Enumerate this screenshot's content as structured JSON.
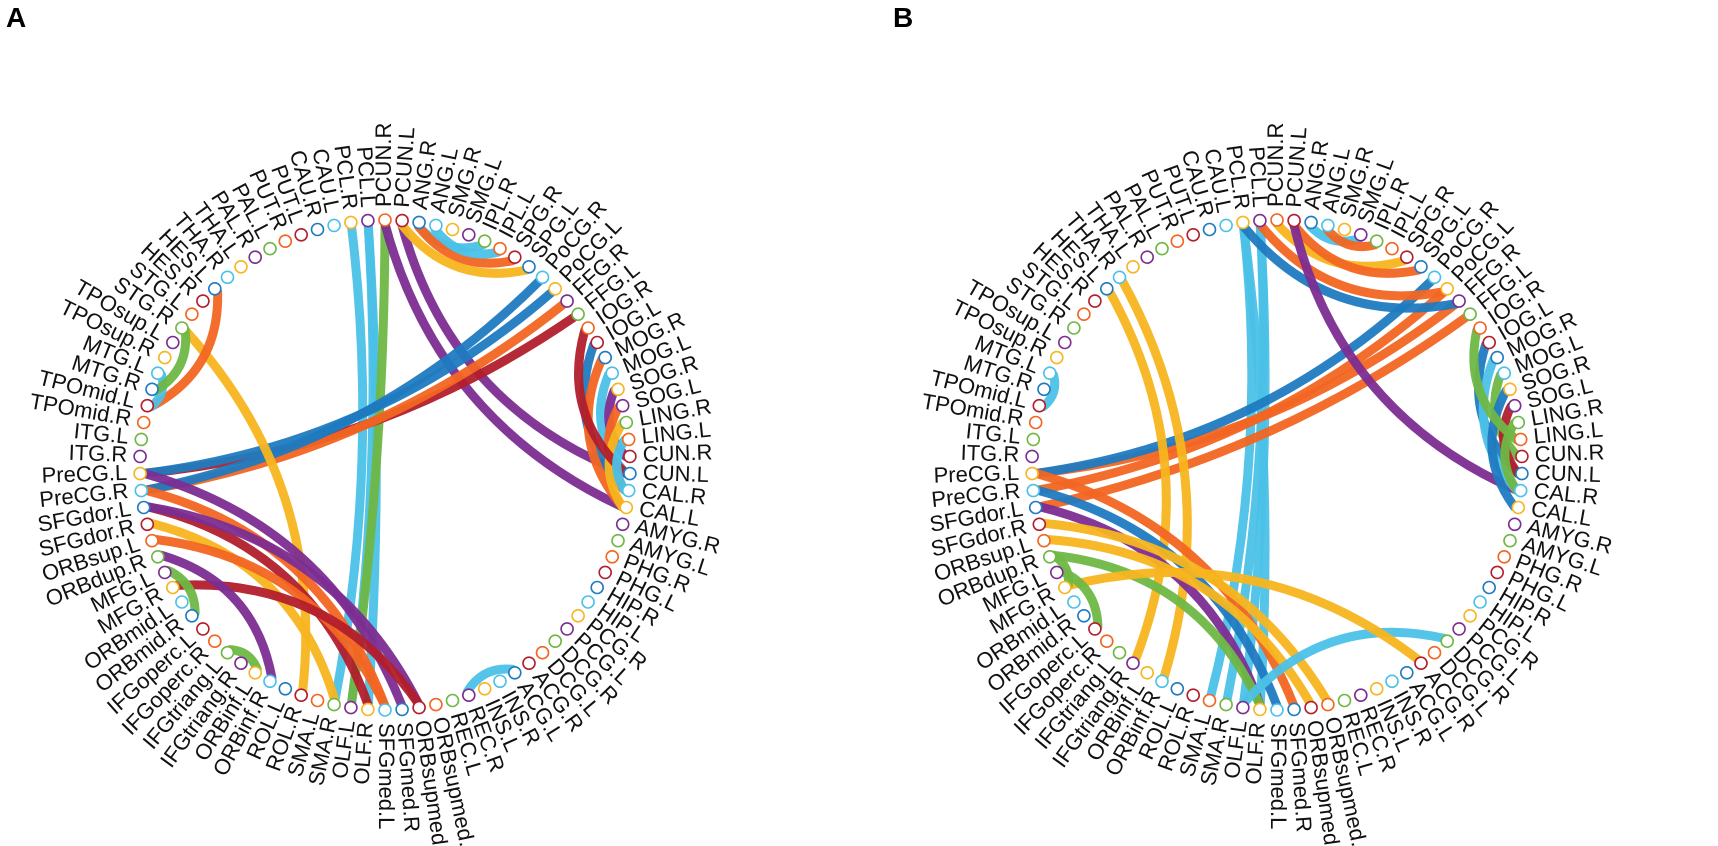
{
  "palette": {
    "orange": "#f26522",
    "dark_red": "#b21e2b",
    "blue": "#1f7ac0",
    "light_blue": "#4cc1e8",
    "yellow": "#f7b51f",
    "purple": "#7c2d92",
    "green": "#6fb744"
  },
  "panels": [
    {
      "letter": "A",
      "labels": [
        "PCUN.R",
        "PCUN.L",
        "ANG.R",
        "ANG.L",
        "SMG.R",
        "SMG.L",
        "IPL.R",
        "IPL.L",
        "SPG.R",
        "SPG.L",
        "PoCG.R",
        "PoCG.L",
        "FFG.R",
        "FFG.L",
        "IOG.R",
        "IOG.L",
        "MOG.R",
        "MOG.L",
        "SOG.R",
        "SOG.L",
        "LING.R",
        "LING.L",
        "CUN.R",
        "CUN.L",
        "CAL.R",
        "CAL.L",
        "AMYG.R",
        "AMYG.L",
        "PHG.R",
        "PHG.L",
        "HIP.R",
        "HIP.L",
        "PCG.R",
        "PCG.L",
        "DCG.R",
        "DCG.L",
        "ACG.R",
        "ACG.L",
        "INS.R",
        "INS.L",
        "REC.R",
        "REC.L",
        "ORBsupmed.R",
        "ORBsupmed.L",
        "SFGmed.R",
        "SFGmed.L",
        "OLF.R",
        "OLF.L",
        "SMA.R",
        "SMA.L",
        "ROL.R",
        "ROL.L",
        "ORBinf.R",
        "ORBinf.L",
        "IFGtriang.R",
        "IFGtriang.L",
        "IFGoperc.R",
        "IFGoperc.L",
        "ORBmid.R",
        "ORBmid.L",
        "MFG.R",
        "MFG.L",
        "ORBdup.R",
        "ORBsup.L",
        "SFGdor.R",
        "SFGdor.L",
        "PreCG.R",
        "PreCG.L",
        "ITG.R",
        "ITG.L",
        "TPOmid.R",
        "TPOmid.L",
        "MTG.R",
        "MTG.L",
        "TPOsup.R",
        "TPOsup.L",
        "STG.R",
        "STG.L",
        "HES.R",
        "HES.L",
        "THA.R",
        "THA.L",
        "PAL.R",
        "PAL.L",
        "PUT.R",
        "PUT.L",
        "CAU.R",
        "CAU.L",
        "PCL.R",
        "PCL.L"
      ],
      "links": [
        [
          88,
          48,
          "light_blue"
        ],
        [
          89,
          47,
          "light_blue"
        ],
        [
          89,
          46,
          "light_blue"
        ],
        [
          0,
          47,
          "green"
        ],
        [
          1,
          23,
          "purple"
        ],
        [
          0,
          25,
          "purple"
        ],
        [
          67,
          13,
          "dark_red"
        ],
        [
          66,
          12,
          "orange"
        ],
        [
          67,
          11,
          "blue"
        ],
        [
          66,
          10,
          "blue"
        ],
        [
          76,
          50,
          "yellow"
        ],
        [
          79,
          71,
          "orange"
        ],
        [
          67,
          44,
          "purple"
        ],
        [
          66,
          45,
          "orange"
        ],
        [
          65,
          46,
          "dark_red"
        ],
        [
          65,
          43,
          "purple"
        ],
        [
          64,
          48,
          "yellow"
        ],
        [
          63,
          45,
          "orange"
        ],
        [
          60,
          43,
          "dark_red"
        ],
        [
          62,
          52,
          "purple"
        ],
        [
          2,
          6,
          "light_blue"
        ],
        [
          2,
          8,
          "orange"
        ],
        [
          1,
          9,
          "yellow"
        ],
        [
          3,
          7,
          "light_blue"
        ],
        [
          15,
          24,
          "blue"
        ],
        [
          16,
          25,
          "orange"
        ],
        [
          17,
          23,
          "light_blue"
        ],
        [
          18,
          22,
          "purple"
        ],
        [
          19,
          24,
          "orange"
        ],
        [
          20,
          25,
          "yellow"
        ],
        [
          14,
          23,
          "dark_red"
        ],
        [
          21,
          24,
          "light_blue"
        ],
        [
          61,
          58,
          "green"
        ],
        [
          73,
          71,
          "light_blue"
        ],
        [
          76,
          72,
          "green"
        ],
        [
          55,
          53,
          "green"
        ],
        [
          40,
          37,
          "light_blue"
        ]
      ]
    },
    {
      "letter": "B",
      "labels": [
        "PCUN.R",
        "PCUN.L",
        "ANG.R",
        "ANG.L",
        "SMG.R",
        "SMG.L",
        "IPL.R",
        "IPL.L",
        "SPG.R",
        "SPG.L",
        "PoCG.R",
        "PoCG.L",
        "FFG.R",
        "FFG.L",
        "IOG.R",
        "IOG.L",
        "MOG.R",
        "MOG.L",
        "SOG.R",
        "SOG.L",
        "LING.R",
        "LING.L",
        "CUN.R",
        "CUN.L",
        "CAL.R",
        "CAL.L",
        "AMYG.R",
        "AMYG.L",
        "PHG.R",
        "PHG.L",
        "HIP.R",
        "HIP.L",
        "PCG.R",
        "PCG.L",
        "DCG.R",
        "DCG.L",
        "ACG.R",
        "ACG.L",
        "INS.R",
        "INS.L",
        "REC.R",
        "REC.L",
        "ORBsupmed.R",
        "ORBsupmed.L",
        "SFGmed.R",
        "SFGmed.L",
        "OLF.R",
        "OLF.L",
        "SMA.R",
        "SMA.L",
        "ROL.R",
        "ROL.L",
        "ORBinf.R",
        "ORBinf.L",
        "IFGtriang.R",
        "IFGtriang.L",
        "IFGoperc.R",
        "IFGoperc.L",
        "ORBmid.R",
        "ORBmid.L",
        "MFG.R",
        "MFG.L",
        "ORBdup.R",
        "ORBsup.L",
        "SFGdor.R",
        "SFGdor.L",
        "PreCG.R",
        "PreCG.L",
        "ITG.R",
        "ITG.L",
        "TPOmid.R",
        "TPOmid.L",
        "MTG.R",
        "MTG.L",
        "TPOsup.R",
        "TPOsup.L",
        "STG.R",
        "STG.L",
        "HES.R",
        "HES.L",
        "THA.R",
        "THA.L",
        "PAL.R",
        "PAL.L",
        "PUT.R",
        "PUT.L",
        "CAU.R",
        "CAU.L",
        "PCL.R",
        "PCL.L"
      ],
      "links": [
        [
          89,
          47,
          "light_blue"
        ],
        [
          88,
          46,
          "light_blue"
        ],
        [
          89,
          48,
          "light_blue"
        ],
        [
          88,
          49,
          "light_blue"
        ],
        [
          67,
          12,
          "orange"
        ],
        [
          66,
          11,
          "orange"
        ],
        [
          65,
          13,
          "orange"
        ],
        [
          67,
          10,
          "blue"
        ],
        [
          89,
          11,
          "orange"
        ],
        [
          88,
          12,
          "blue"
        ],
        [
          0,
          8,
          "yellow"
        ],
        [
          1,
          9,
          "orange"
        ],
        [
          1,
          24,
          "purple"
        ],
        [
          80,
          52,
          "yellow"
        ],
        [
          79,
          54,
          "yellow"
        ],
        [
          67,
          44,
          "orange"
        ],
        [
          66,
          45,
          "blue"
        ],
        [
          65,
          46,
          "purple"
        ],
        [
          64,
          42,
          "yellow"
        ],
        [
          63,
          43,
          "yellow"
        ],
        [
          62,
          46,
          "green"
        ],
        [
          47,
          34,
          "light_blue"
        ],
        [
          60,
          36,
          "yellow"
        ],
        [
          2,
          5,
          "light_blue"
        ],
        [
          3,
          6,
          "orange"
        ],
        [
          15,
          23,
          "blue"
        ],
        [
          16,
          24,
          "light_blue"
        ],
        [
          17,
          22,
          "green"
        ],
        [
          18,
          25,
          "blue"
        ],
        [
          19,
          23,
          "dark_red"
        ],
        [
          20,
          24,
          "green"
        ],
        [
          14,
          21,
          "green"
        ],
        [
          73,
          71,
          "light_blue"
        ],
        [
          61,
          57,
          "green"
        ],
        [
          62,
          60,
          "green"
        ]
      ]
    }
  ]
}
